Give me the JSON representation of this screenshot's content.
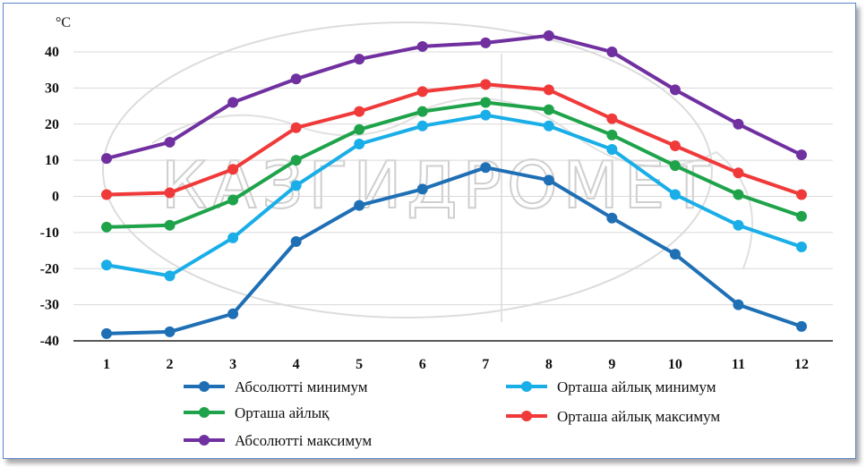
{
  "chart_data": {
    "type": "line",
    "unit_label": "°C",
    "watermark_text": "КАЗГИДРОМЕТ",
    "x": [
      1,
      2,
      3,
      4,
      5,
      6,
      7,
      8,
      9,
      10,
      11,
      12
    ],
    "ylim": [
      -40,
      45
    ],
    "yticks": [
      40,
      30,
      20,
      10,
      0,
      -10,
      -20,
      -30,
      -40
    ],
    "ytick_labels": [
      "40",
      "30",
      "20",
      "10",
      "0",
      "-10",
      "-20",
      "-30",
      "-40"
    ],
    "grid": true,
    "legend_position": "bottom",
    "series": [
      {
        "name": "Абсолютті минимум",
        "color": "#1f6fb5",
        "values": [
          -38.0,
          -37.5,
          -32.5,
          -12.5,
          -2.5,
          2.0,
          8.0,
          4.5,
          -6.0,
          -16.0,
          -30.0,
          -36.0
        ]
      },
      {
        "name": "Орташа айлық",
        "color": "#1fa34a",
        "values": [
          -8.5,
          -8.0,
          -1.0,
          10.0,
          18.5,
          23.5,
          26.0,
          24.0,
          17.0,
          8.5,
          0.5,
          -5.5
        ]
      },
      {
        "name": "Абсолютті максимум",
        "color": "#7030a0",
        "values": [
          10.5,
          15.0,
          26.0,
          32.5,
          38.0,
          41.5,
          42.5,
          44.5,
          40.0,
          29.5,
          20.0,
          11.5
        ]
      },
      {
        "name": "Орташа айлық минимум",
        "color": "#19aee8",
        "values": [
          -19.0,
          -22.0,
          -11.5,
          3.0,
          14.5,
          19.5,
          22.5,
          19.5,
          13.0,
          0.5,
          -8.0,
          -14.0
        ]
      },
      {
        "name": "Орташа айлық максимум",
        "color": "#f03a3a",
        "values": [
          0.5,
          1.0,
          7.5,
          19.0,
          23.5,
          29.0,
          31.0,
          29.5,
          21.5,
          14.0,
          6.5,
          0.5
        ]
      }
    ]
  }
}
